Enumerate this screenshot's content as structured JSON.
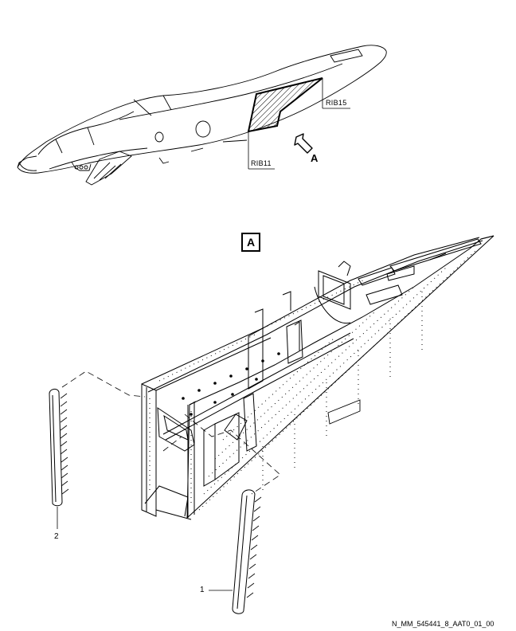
{
  "aircraft_view": {
    "rib_upper_label": "RIB15",
    "rib_lower_label": "RIB11",
    "view_arrow_letter": "A"
  },
  "detail_view": {
    "view_box_letter": "A",
    "item_callouts": [
      "2",
      "1"
    ]
  },
  "figure_code": "N_MM_545441_8_AAT0_01_00",
  "colors": {
    "line": "#000000",
    "background": "#ffffff"
  }
}
